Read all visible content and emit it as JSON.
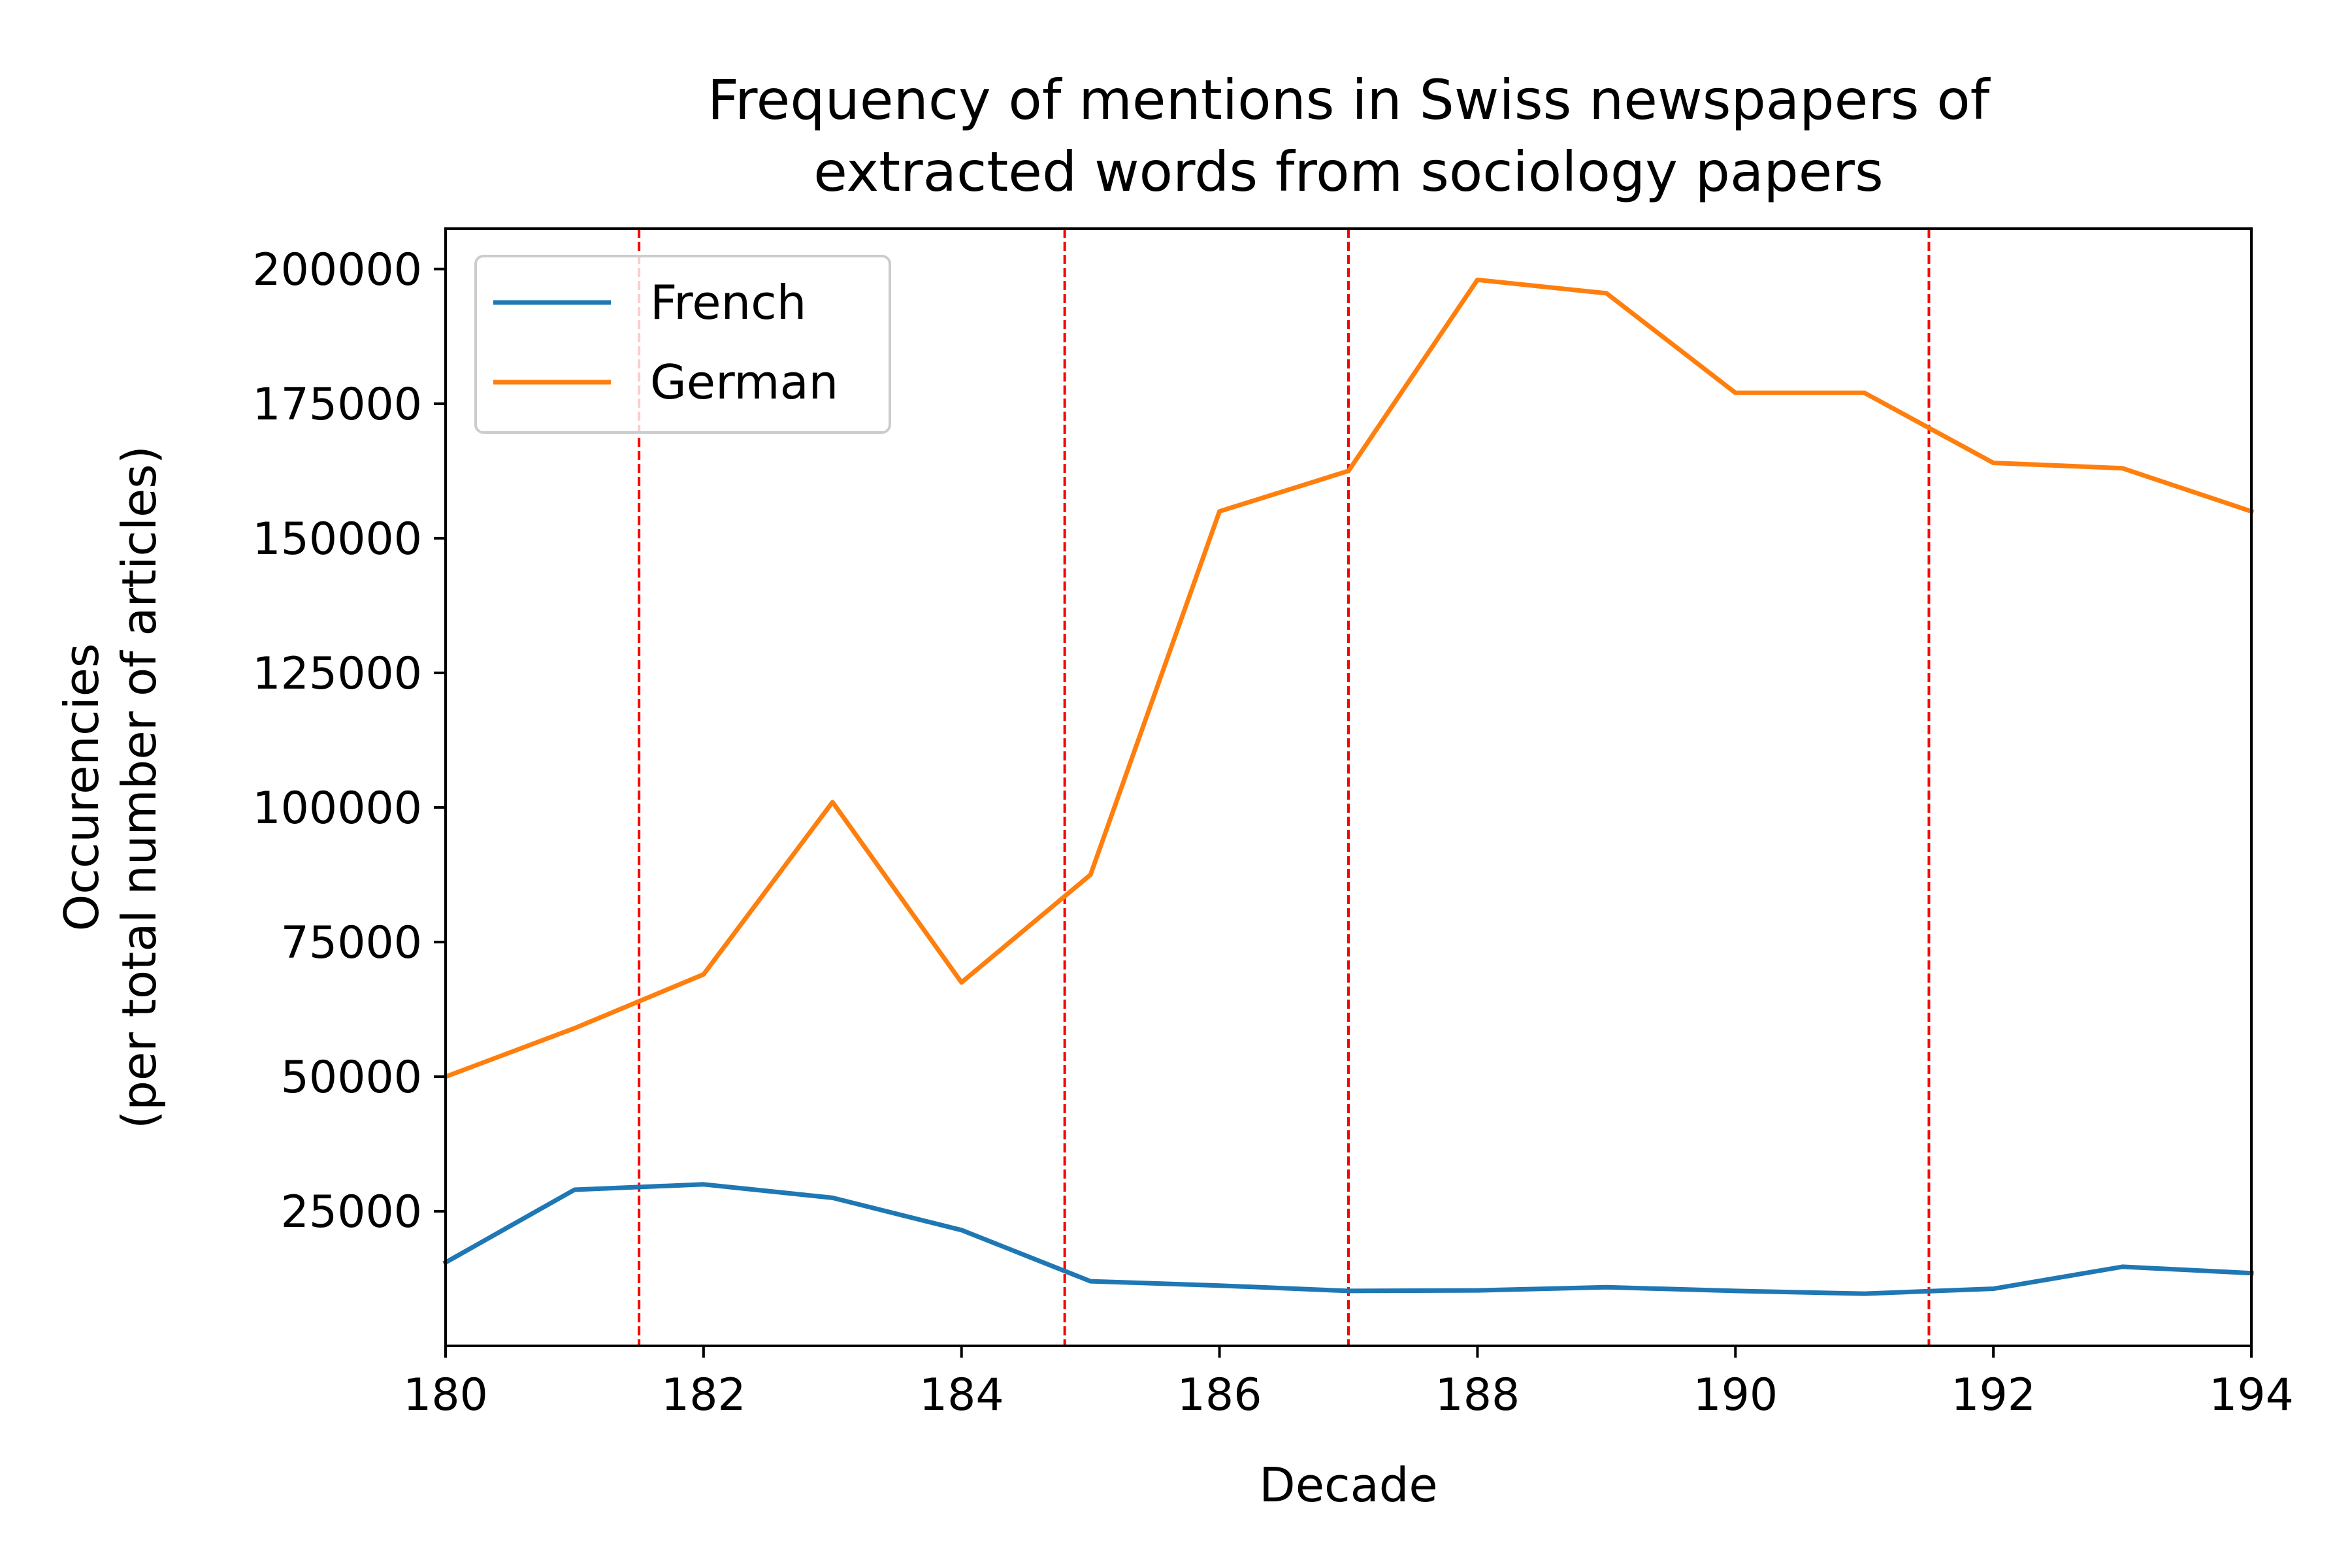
{
  "chart_data": {
    "type": "line",
    "title_lines": [
      "Frequency of mentions in Swiss newspapers of",
      "extracted words from sociology papers"
    ],
    "xlabel": "Decade",
    "ylabel_lines": [
      "Occurencies",
      "(per total number of articles)"
    ],
    "xlim": [
      180,
      194
    ],
    "ylim": [
      0,
      207500
    ],
    "xticks": [
      180,
      182,
      184,
      186,
      188,
      190,
      192,
      194
    ],
    "xtick_labels": [
      "180",
      "182",
      "184",
      "186",
      "188",
      "190",
      "192",
      "194"
    ],
    "yticks": [
      25000,
      50000,
      75000,
      100000,
      125000,
      150000,
      175000,
      200000
    ],
    "ytick_labels": [
      "25000",
      "50000",
      "75000",
      "100000",
      "125000",
      "150000",
      "175000",
      "200000"
    ],
    "legend_position": "upper-left",
    "x": [
      180,
      181,
      182,
      183,
      184,
      185,
      186,
      187,
      188,
      189,
      190,
      191,
      192,
      193,
      194
    ],
    "series": [
      {
        "name": "French",
        "color": "#1f77b4",
        "values": [
          15500,
          29000,
          30000,
          27500,
          21500,
          12000,
          11200,
          10200,
          10300,
          10900,
          10200,
          9700,
          10600,
          14700,
          13500
        ]
      },
      {
        "name": "German",
        "color": "#ff7f0e",
        "values": [
          50000,
          59000,
          69000,
          101000,
          67500,
          87500,
          155000,
          162500,
          198000,
          195500,
          177000,
          177000,
          164000,
          163000,
          155000
        ]
      }
    ],
    "vlines": {
      "x": [
        181.5,
        184.8,
        187.0,
        191.5
      ],
      "color": "#ff0000",
      "style": "dashed"
    }
  }
}
